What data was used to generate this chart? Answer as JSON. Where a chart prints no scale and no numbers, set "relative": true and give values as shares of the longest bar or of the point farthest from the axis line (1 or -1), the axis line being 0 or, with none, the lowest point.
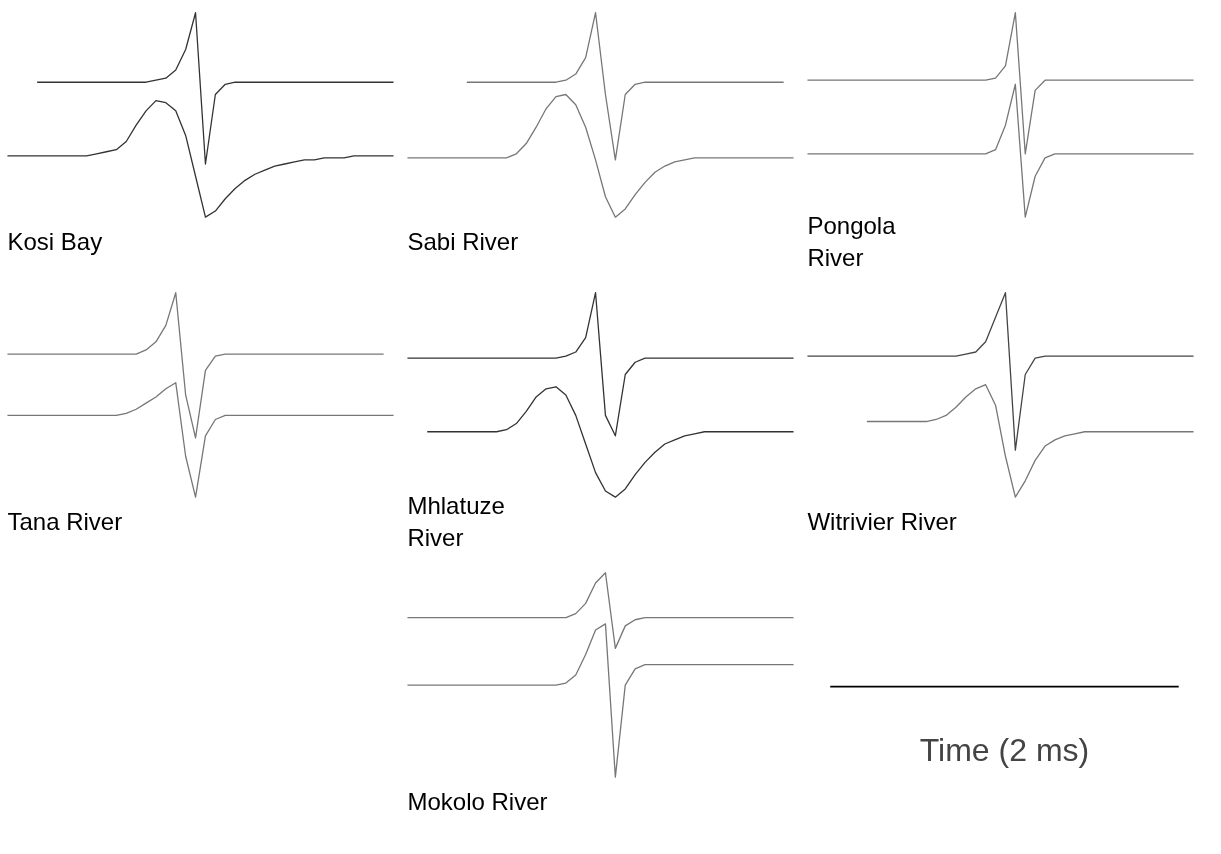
{
  "chart_data": [
    {
      "type": "line",
      "relative": true,
      "title": "Kosi Bay",
      "tick_labels": false,
      "grid": false,
      "categories": [
        null,
        null,
        null,
        null,
        null,
        null,
        null,
        null,
        null,
        null,
        null,
        null,
        null,
        null,
        null,
        null,
        null,
        null,
        null,
        null,
        null,
        null,
        null,
        null,
        null,
        null,
        null,
        null,
        null,
        null,
        null,
        null,
        null,
        null,
        null,
        null,
        null,
        null,
        null,
        null
      ],
      "series": [
        {
          "color": "#333333",
          "values": [
            null,
            null,
            null,
            0.66,
            0.66,
            0.66,
            0.66,
            0.66,
            0.66,
            0.66,
            0.66,
            0.66,
            0.66,
            0.66,
            0.66,
            0.67,
            0.68,
            0.72,
            0.82,
            1.0,
            0.26,
            0.6,
            0.65,
            0.66,
            0.66,
            0.66,
            0.66,
            0.66,
            0.66,
            0.66,
            0.66,
            0.66,
            0.66,
            0.66,
            0.66,
            0.66,
            0.66,
            0.66,
            0.66,
            0.66
          ]
        },
        {
          "color": "#333333",
          "values": [
            0.3,
            0.3,
            0.3,
            0.3,
            0.3,
            0.3,
            0.3,
            0.3,
            0.3,
            0.31,
            0.32,
            0.33,
            0.37,
            0.45,
            0.52,
            0.57,
            0.56,
            0.52,
            0.4,
            0.2,
            0.0,
            0.03,
            0.09,
            0.14,
            0.18,
            0.21,
            0.23,
            0.25,
            0.26,
            0.27,
            0.28,
            0.28,
            0.29,
            0.29,
            0.29,
            0.3,
            0.3,
            0.3,
            0.3,
            0.3
          ]
        }
      ]
    },
    {
      "type": "line",
      "relative": true,
      "title": "Sabi River",
      "tick_labels": false,
      "grid": false,
      "categories": [
        null,
        null,
        null,
        null,
        null,
        null,
        null,
        null,
        null,
        null,
        null,
        null,
        null,
        null,
        null,
        null,
        null,
        null,
        null,
        null,
        null,
        null,
        null,
        null,
        null,
        null,
        null,
        null,
        null,
        null,
        null,
        null,
        null,
        null,
        null,
        null,
        null,
        null,
        null,
        null
      ],
      "series": [
        {
          "color": "#777777",
          "values": [
            null,
            null,
            null,
            null,
            null,
            null,
            0.66,
            0.66,
            0.66,
            0.66,
            0.66,
            0.66,
            0.66,
            0.66,
            0.66,
            0.66,
            0.67,
            0.7,
            0.78,
            1.0,
            0.6,
            0.28,
            0.6,
            0.65,
            0.66,
            0.66,
            0.66,
            0.66,
            0.66,
            0.66,
            0.66,
            0.66,
            0.66,
            0.66,
            0.66,
            0.66,
            0.66,
            0.66,
            0.66,
            null
          ]
        },
        {
          "color": "#777777",
          "values": [
            0.29,
            0.29,
            0.29,
            0.29,
            0.29,
            0.29,
            0.29,
            0.29,
            0.29,
            0.29,
            0.29,
            0.31,
            0.36,
            0.44,
            0.53,
            0.59,
            0.6,
            0.55,
            0.44,
            0.28,
            0.1,
            0.0,
            0.04,
            0.11,
            0.17,
            0.22,
            0.25,
            0.27,
            0.28,
            0.29,
            0.29,
            0.29,
            0.29,
            0.29,
            0.29,
            0.29,
            0.29,
            0.29,
            0.29,
            0.29
          ]
        }
      ]
    },
    {
      "type": "line",
      "relative": true,
      "title": "Pongola\nRiver",
      "tick_labels": false,
      "grid": false,
      "categories": [
        null,
        null,
        null,
        null,
        null,
        null,
        null,
        null,
        null,
        null,
        null,
        null,
        null,
        null,
        null,
        null,
        null,
        null,
        null,
        null,
        null,
        null,
        null,
        null,
        null,
        null,
        null,
        null,
        null,
        null,
        null,
        null,
        null,
        null,
        null,
        null,
        null,
        null,
        null,
        null
      ],
      "series": [
        {
          "color": "#777777",
          "values": [
            0.67,
            0.67,
            0.67,
            0.67,
            0.67,
            0.67,
            0.67,
            0.67,
            0.67,
            0.67,
            0.67,
            0.67,
            0.67,
            0.67,
            0.67,
            0.67,
            0.67,
            0.67,
            0.67,
            0.68,
            0.74,
            1.0,
            0.31,
            0.62,
            0.67,
            0.67,
            0.67,
            0.67,
            0.67,
            0.67,
            0.67,
            0.67,
            0.67,
            0.67,
            0.67,
            0.67,
            0.67,
            0.67,
            0.67,
            0.67
          ]
        },
        {
          "color": "#777777",
          "values": [
            0.31,
            0.31,
            0.31,
            0.31,
            0.31,
            0.31,
            0.31,
            0.31,
            0.31,
            0.31,
            0.31,
            0.31,
            0.31,
            0.31,
            0.31,
            0.31,
            0.31,
            0.31,
            0.31,
            0.33,
            0.45,
            0.65,
            0.0,
            0.2,
            0.29,
            0.31,
            0.31,
            0.31,
            0.31,
            0.31,
            0.31,
            0.31,
            0.31,
            0.31,
            0.31,
            0.31,
            0.31,
            0.31,
            0.31,
            0.31
          ]
        }
      ]
    },
    {
      "type": "line",
      "relative": true,
      "title": "Tana River",
      "tick_labels": false,
      "grid": false,
      "categories": [
        null,
        null,
        null,
        null,
        null,
        null,
        null,
        null,
        null,
        null,
        null,
        null,
        null,
        null,
        null,
        null,
        null,
        null,
        null,
        null,
        null,
        null,
        null,
        null,
        null,
        null,
        null,
        null,
        null,
        null,
        null,
        null,
        null,
        null,
        null,
        null,
        null,
        null,
        null,
        null
      ],
      "series": [
        {
          "color": "#777777",
          "values": [
            0.7,
            0.7,
            0.7,
            0.7,
            0.7,
            0.7,
            0.7,
            0.7,
            0.7,
            0.7,
            0.7,
            0.7,
            0.7,
            0.7,
            0.72,
            0.76,
            0.84,
            1.0,
            0.5,
            0.29,
            0.62,
            0.69,
            0.7,
            0.7,
            0.7,
            0.7,
            0.7,
            0.7,
            0.7,
            0.7,
            0.7,
            0.7,
            0.7,
            0.7,
            0.7,
            0.7,
            0.7,
            0.7,
            0.7,
            null
          ]
        },
        {
          "color": "#777777",
          "values": [
            0.4,
            0.4,
            0.4,
            0.4,
            0.4,
            0.4,
            0.4,
            0.4,
            0.4,
            0.4,
            0.4,
            0.4,
            0.41,
            0.43,
            0.46,
            0.49,
            0.53,
            0.56,
            0.2,
            0.0,
            0.3,
            0.38,
            0.4,
            0.4,
            0.4,
            0.4,
            0.4,
            0.4,
            0.4,
            0.4,
            0.4,
            0.4,
            0.4,
            0.4,
            0.4,
            0.4,
            0.4,
            0.4,
            0.4,
            0.4
          ]
        }
      ]
    },
    {
      "type": "line",
      "relative": true,
      "title": "Mhlatuze\nRiver",
      "tick_labels": false,
      "grid": false,
      "categories": [
        null,
        null,
        null,
        null,
        null,
        null,
        null,
        null,
        null,
        null,
        null,
        null,
        null,
        null,
        null,
        null,
        null,
        null,
        null,
        null,
        null,
        null,
        null,
        null,
        null,
        null,
        null,
        null,
        null,
        null,
        null,
        null,
        null,
        null,
        null,
        null,
        null,
        null,
        null,
        null
      ],
      "series": [
        {
          "color": "#333333",
          "values": [
            0.68,
            0.68,
            0.68,
            0.68,
            0.68,
            0.68,
            0.68,
            0.68,
            0.68,
            0.68,
            0.68,
            0.68,
            0.68,
            0.68,
            0.68,
            0.68,
            0.69,
            0.71,
            0.78,
            1.0,
            0.4,
            0.3,
            0.6,
            0.66,
            0.68,
            0.68,
            0.68,
            0.68,
            0.68,
            0.68,
            0.68,
            0.68,
            0.68,
            0.68,
            0.68,
            0.68,
            0.68,
            0.68,
            0.68,
            0.68
          ]
        },
        {
          "color": "#333333",
          "values": [
            null,
            null,
            0.32,
            0.32,
            0.32,
            0.32,
            0.32,
            0.32,
            0.32,
            0.32,
            0.33,
            0.36,
            0.42,
            0.49,
            0.53,
            0.54,
            0.5,
            0.4,
            0.26,
            0.12,
            0.03,
            0.0,
            0.04,
            0.11,
            0.17,
            0.22,
            0.26,
            0.28,
            0.3,
            0.31,
            0.32,
            0.32,
            0.32,
            0.32,
            0.32,
            0.32,
            0.32,
            0.32,
            0.32,
            0.32
          ]
        }
      ]
    },
    {
      "type": "line",
      "relative": true,
      "title": "Witrivier River",
      "tick_labels": false,
      "grid": false,
      "categories": [
        null,
        null,
        null,
        null,
        null,
        null,
        null,
        null,
        null,
        null,
        null,
        null,
        null,
        null,
        null,
        null,
        null,
        null,
        null,
        null,
        null,
        null,
        null,
        null,
        null,
        null,
        null,
        null,
        null,
        null,
        null,
        null,
        null,
        null,
        null,
        null,
        null,
        null,
        null,
        null
      ],
      "series": [
        {
          "color": "#444444",
          "values": [
            0.69,
            0.69,
            0.69,
            0.69,
            0.69,
            0.69,
            0.69,
            0.69,
            0.69,
            0.69,
            0.69,
            0.69,
            0.69,
            0.69,
            0.69,
            0.69,
            0.7,
            0.71,
            0.76,
            0.88,
            1.0,
            0.23,
            0.6,
            0.68,
            0.69,
            0.69,
            0.69,
            0.69,
            0.69,
            0.69,
            0.69,
            0.69,
            0.69,
            0.69,
            0.69,
            0.69,
            0.69,
            0.69,
            0.69,
            0.69
          ]
        },
        {
          "color": "#777777",
          "values": [
            null,
            null,
            null,
            null,
            null,
            null,
            0.37,
            0.37,
            0.37,
            0.37,
            0.37,
            0.37,
            0.37,
            0.38,
            0.4,
            0.44,
            0.49,
            0.53,
            0.55,
            0.45,
            0.2,
            0.0,
            0.08,
            0.18,
            0.25,
            0.28,
            0.3,
            0.31,
            0.32,
            0.32,
            0.32,
            0.32,
            0.32,
            0.32,
            0.32,
            0.32,
            0.32,
            0.32,
            0.32,
            0.32
          ]
        }
      ]
    },
    {
      "type": "line",
      "relative": true,
      "title": "Mokolo River",
      "tick_labels": false,
      "grid": false,
      "categories": [
        null,
        null,
        null,
        null,
        null,
        null,
        null,
        null,
        null,
        null,
        null,
        null,
        null,
        null,
        null,
        null,
        null,
        null,
        null,
        null,
        null,
        null,
        null,
        null,
        null,
        null,
        null,
        null,
        null,
        null,
        null,
        null,
        null,
        null,
        null,
        null,
        null,
        null,
        null,
        null
      ],
      "series": [
        {
          "color": "#777777",
          "values": [
            0.78,
            0.78,
            0.78,
            0.78,
            0.78,
            0.78,
            0.78,
            0.78,
            0.78,
            0.78,
            0.78,
            0.78,
            0.78,
            0.78,
            0.78,
            0.78,
            0.78,
            0.8,
            0.85,
            0.95,
            1.0,
            0.63,
            0.74,
            0.77,
            0.78,
            0.78,
            0.78,
            0.78,
            0.78,
            0.78,
            0.78,
            0.78,
            0.78,
            0.78,
            0.78,
            0.78,
            0.78,
            0.78,
            0.78,
            0.78
          ]
        },
        {
          "color": "#777777",
          "values": [
            0.45,
            0.45,
            0.45,
            0.45,
            0.45,
            0.45,
            0.45,
            0.45,
            0.45,
            0.45,
            0.45,
            0.45,
            0.45,
            0.45,
            0.45,
            0.45,
            0.46,
            0.5,
            0.6,
            0.72,
            0.75,
            0.0,
            0.45,
            0.53,
            0.55,
            0.55,
            0.55,
            0.55,
            0.55,
            0.55,
            0.55,
            0.55,
            0.55,
            0.55,
            0.55,
            0.55,
            0.55,
            0.55,
            0.55,
            0.55
          ]
        }
      ]
    },
    {
      "type": "other",
      "annotations": [
        "Time (2 ms)"
      ]
    }
  ]
}
